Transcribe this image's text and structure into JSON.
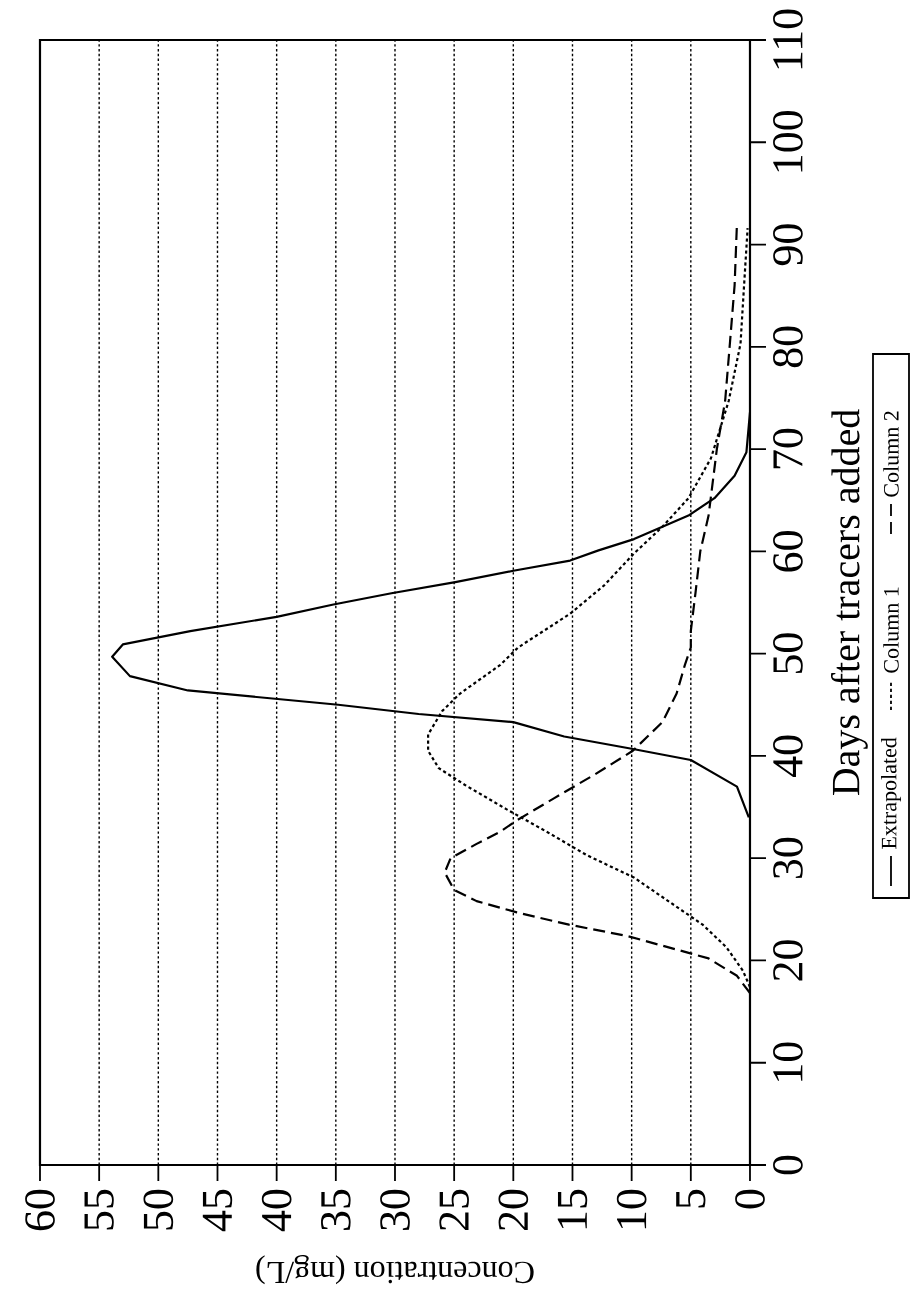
{
  "chart_data": {
    "type": "line",
    "xlabel": "Concentration (mg/L)",
    "ylabel": "Days after tracers added",
    "xlim": [
      60,
      0
    ],
    "ylim": [
      0,
      110
    ],
    "xticks": [
      60,
      55,
      50,
      45,
      40,
      35,
      30,
      25,
      20,
      15,
      10,
      5,
      0
    ],
    "yticks": [
      0,
      10,
      20,
      30,
      40,
      50,
      60,
      70,
      80,
      90,
      100,
      110
    ],
    "grid": "x",
    "legend": "right",
    "series": [
      {
        "name": "Extrapolated",
        "color": "#000000",
        "line_style": "solid",
        "x": [
          0.1,
          1.1,
          5,
          10,
          15.7,
          20,
          28,
          34.8,
          47.5,
          52.4,
          53.9,
          53,
          47.3,
          40,
          35.2,
          30.3,
          24.9,
          20,
          15.2,
          12.8,
          9.8,
          7.4,
          5.2,
          3,
          1.3,
          0.3,
          0
        ],
        "values": [
          34,
          37,
          39.6,
          40.7,
          41.9,
          43.3,
          44.1,
          45,
          46.4,
          47.8,
          49.7,
          50.9,
          52.2,
          53.6,
          54.8,
          55.9,
          57,
          58.1,
          59.1,
          60.1,
          61.2,
          62.4,
          63.5,
          65.2,
          67.4,
          69.7,
          73.6
        ]
      },
      {
        "name": "Column 1",
        "color": "#000000",
        "line_style": "dotted",
        "x": [
          0,
          0.6,
          2,
          4,
          6.9,
          9.8,
          13.8,
          17.2,
          20.6,
          24,
          26.3,
          27.2,
          27.2,
          26,
          24.5,
          21.1,
          19.6,
          15.2,
          12.3,
          9.8,
          7.4,
          5.2,
          3.3,
          1.8,
          0.8,
          0.5,
          0.2
        ],
        "values": [
          17.4,
          19,
          21.3,
          23.5,
          25.8,
          28.1,
          30.3,
          32.6,
          34.8,
          37.1,
          38.8,
          40.5,
          42.1,
          44.4,
          46.1,
          48.9,
          50.6,
          53.9,
          56.7,
          59.8,
          62.4,
          65.2,
          69.1,
          74.7,
          80.3,
          86,
          91.6
        ]
      },
      {
        "name": "Column 2",
        "color": "#000000",
        "line_style": "dashed",
        "x": [
          0,
          1.1,
          3.5,
          6,
          10.4,
          15.3,
          19.7,
          23.1,
          25,
          25.8,
          25.3,
          23.1,
          21.1,
          19.7,
          16.5,
          13.1,
          9.9,
          7.4,
          6.2,
          5.5,
          5,
          5,
          4.6,
          4.2,
          3.5,
          2.8,
          2.1,
          1.7,
          1.3,
          1.1
        ],
        "values": [
          16.8,
          18.5,
          20.2,
          21,
          22.4,
          23.5,
          24.7,
          25.8,
          26.9,
          28.6,
          30,
          31.4,
          32.6,
          33.7,
          35.9,
          38.2,
          40.5,
          43.3,
          46.1,
          48.9,
          50.6,
          52.2,
          56,
          60,
          63.5,
          70,
          74.7,
          80.3,
          86,
          92.1
        ]
      }
    ]
  }
}
